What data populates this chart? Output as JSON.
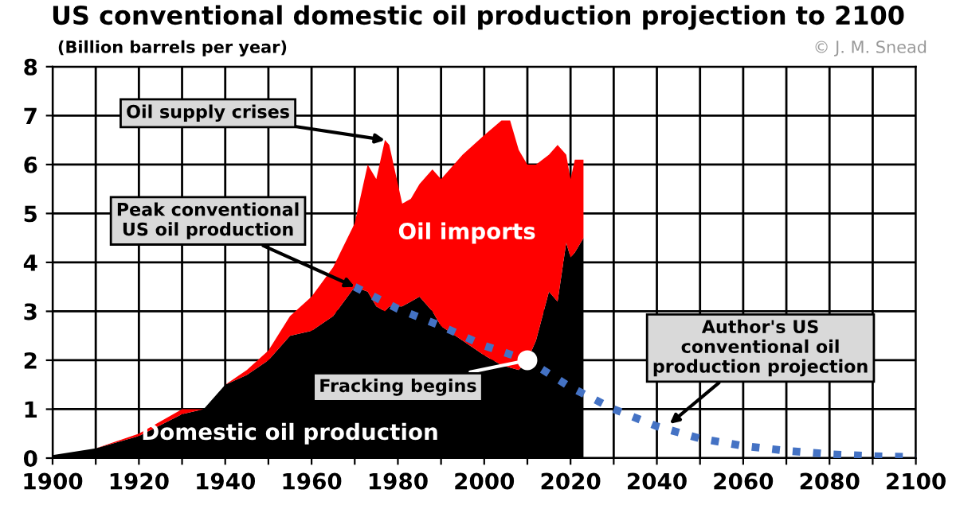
{
  "chart_data": {
    "type": "area",
    "stacked": true,
    "title": "US conventional domestic oil production projection to 2100",
    "ylabel": "(Billion barrels per year)",
    "x": [
      1900,
      1910,
      1920,
      1930,
      1935,
      1940,
      1945,
      1950,
      1955,
      1960,
      1965,
      1970,
      1973,
      1975,
      1977,
      1978,
      1981,
      1983,
      1985,
      1988,
      1990,
      1995,
      2000,
      2004,
      2006,
      2008,
      2010,
      2012,
      2015,
      2017,
      2019,
      2020,
      2021,
      2023
    ],
    "series": [
      {
        "name": "Domestic oil production",
        "color": "#000000",
        "values": [
          0.06,
          0.2,
          0.45,
          0.9,
          1.0,
          1.5,
          1.7,
          2.0,
          2.5,
          2.6,
          2.9,
          3.5,
          3.4,
          3.1,
          3.0,
          3.1,
          3.1,
          3.2,
          3.3,
          3.0,
          2.7,
          2.4,
          2.1,
          1.9,
          1.85,
          1.8,
          2.0,
          2.4,
          3.4,
          3.2,
          4.4,
          4.1,
          4.2,
          4.5
        ]
      },
      {
        "name": "Oil imports",
        "color": "#ff0000",
        "values": [
          0,
          0,
          0.05,
          0.1,
          0,
          0,
          0.1,
          0.2,
          0.4,
          0.7,
          1.0,
          1.3,
          2.6,
          2.6,
          3.5,
          3.3,
          2.1,
          2.1,
          2.3,
          2.9,
          3.0,
          3.8,
          4.5,
          5.0,
          5.05,
          4.5,
          4.0,
          3.6,
          2.8,
          3.2,
          1.8,
          1.6,
          1.9,
          1.6
        ]
      },
      {
        "type": "line",
        "line_style": "dotted",
        "color": "#4472c4",
        "x": [
          1970,
          1980,
          1990,
          2000,
          2010,
          2020,
          2030,
          2040,
          2050,
          2060,
          2070,
          2080,
          2090,
          2100
        ],
        "values": [
          3.5,
          3.05,
          2.7,
          2.3,
          2.0,
          1.45,
          1.0,
          0.65,
          0.4,
          0.25,
          0.15,
          0.08,
          0.04,
          0.02
        ]
      }
    ],
    "annotations": [
      {
        "text": "Oil supply crises",
        "x": 1977,
        "y": 6.5
      },
      {
        "text": "Peak conventional\nUS oil production",
        "x": 1970,
        "y": 3.5
      },
      {
        "text": "Fracking begins",
        "x": 2010,
        "y": 2.0
      },
      {
        "text": "Author's US\nconventional oil\nproduction projection",
        "x": 2043,
        "y": 0.7
      },
      "© J. M. Snead"
    ],
    "xlim": [
      1900,
      2100
    ],
    "ylim": [
      0,
      8
    ],
    "xticks": [
      1900,
      {
        "value": 1910,
        "label": null
      },
      1920,
      {
        "value": 1930,
        "label": null
      },
      1940,
      {
        "value": 1950,
        "label": null
      },
      1960,
      {
        "value": 1970,
        "label": null
      },
      1980,
      {
        "value": 1990,
        "label": null
      },
      2000,
      {
        "value": 2010,
        "label": null
      },
      2020,
      {
        "value": 2030,
        "label": null
      },
      2040,
      {
        "value": 2050,
        "label": null
      },
      2060,
      {
        "value": 2070,
        "label": null
      },
      2080,
      {
        "value": 2090,
        "label": null
      },
      2100
    ],
    "yticks": [
      0,
      1,
      2,
      3,
      4,
      5,
      6,
      7,
      8
    ],
    "grid": true,
    "legend": false
  }
}
